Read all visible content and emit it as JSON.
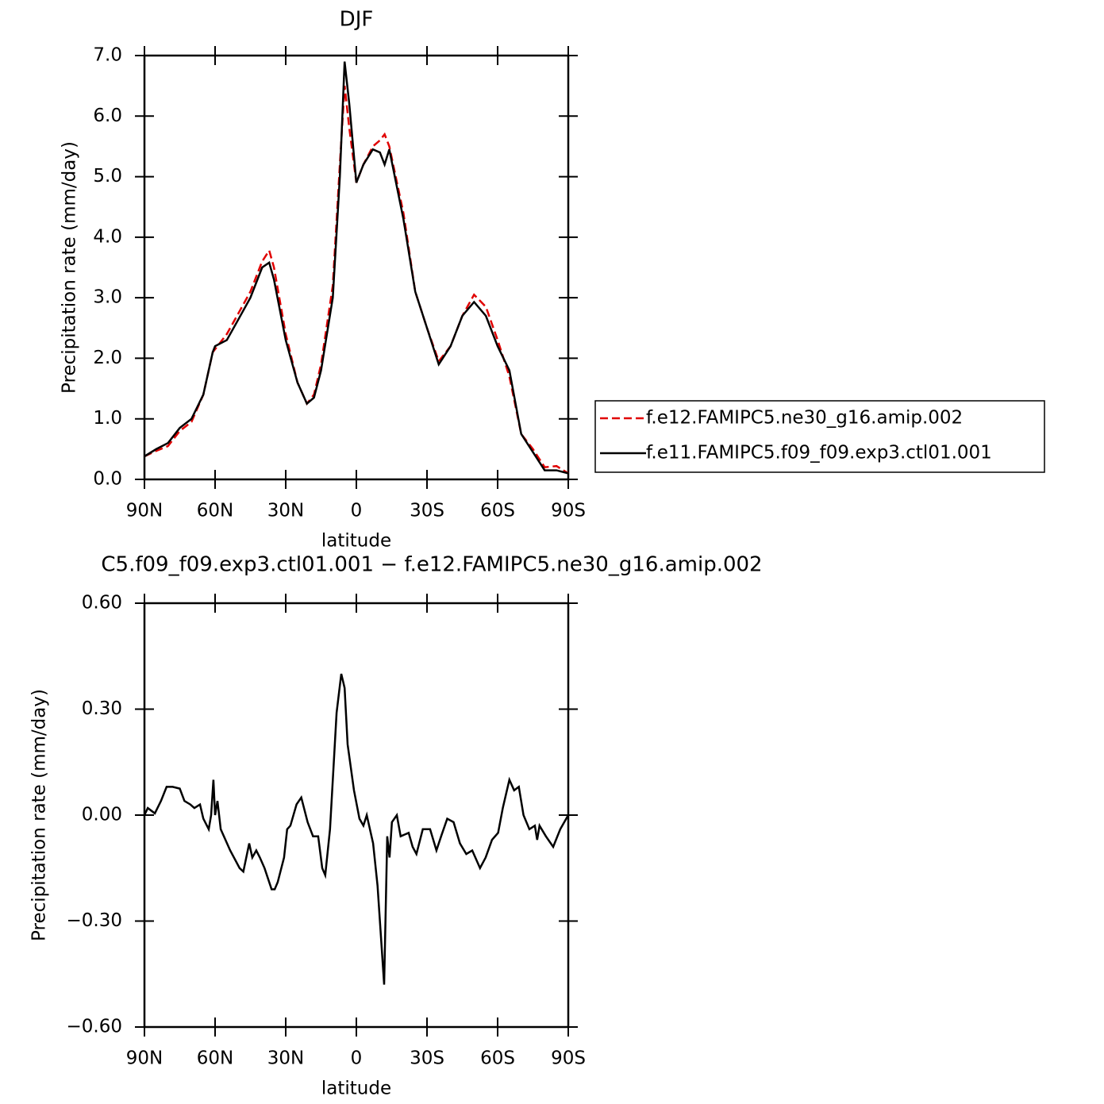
{
  "chart_data": [
    {
      "type": "line",
      "title": "DJF",
      "x_label": "latitude",
      "y_label": "Precipitation rate (mm/day)",
      "xlim": [
        90,
        -90
      ],
      "xticks": [
        {
          "value": 90,
          "label": "90N"
        },
        {
          "value": 60,
          "label": "60N"
        },
        {
          "value": 30,
          "label": "30N"
        },
        0,
        {
          "value": -30,
          "label": "30S"
        },
        {
          "value": -60,
          "label": "60S"
        },
        {
          "value": -90,
          "label": "90S"
        }
      ],
      "ylim": [
        0,
        7
      ],
      "yticks": [
        {
          "value": 0,
          "label": "0.0"
        },
        {
          "value": 1,
          "label": "1.0"
        },
        {
          "value": 2,
          "label": "2.0"
        },
        {
          "value": 3,
          "label": "3.0"
        },
        {
          "value": 4,
          "label": "4.0"
        },
        {
          "value": 5,
          "label": "5.0"
        },
        {
          "value": 6,
          "label": "6.0"
        },
        {
          "value": 7,
          "label": "7.0"
        }
      ],
      "legend": "right",
      "x": [
        90,
        85,
        80,
        75,
        70,
        65,
        61,
        60,
        55,
        50,
        45,
        40,
        37,
        35,
        30,
        25,
        21,
        18,
        15,
        10,
        7,
        5,
        3,
        0,
        -3,
        -7,
        -10,
        -12,
        -14,
        -20,
        -25,
        -30,
        -35,
        -40,
        -45,
        -50,
        -55,
        -60,
        -65,
        -70,
        -75,
        -80,
        -85,
        -90
      ],
      "series": [
        {
          "name": "f.e12.FAMIPC5.ne30_g16.amip.002",
          "color": "#e00000",
          "line_style": "dashed",
          "values": [
            0.38,
            0.47,
            0.55,
            0.8,
            0.95,
            1.4,
            2.1,
            2.15,
            2.4,
            2.75,
            3.1,
            3.6,
            3.78,
            3.5,
            2.4,
            1.6,
            1.25,
            1.4,
            1.9,
            3.2,
            5.2,
            6.5,
            5.8,
            4.9,
            5.2,
            5.5,
            5.6,
            5.7,
            5.5,
            4.4,
            3.1,
            2.5,
            1.95,
            2.2,
            2.7,
            3.05,
            2.85,
            2.3,
            1.7,
            0.75,
            0.5,
            0.2,
            0.22,
            0.1
          ]
        },
        {
          "name": "f.e11.FAMIPC5.f09_f09.exp3.ctl01.001",
          "color": "#000000",
          "line_style": "solid",
          "values": [
            0.38,
            0.5,
            0.6,
            0.85,
            1.0,
            1.4,
            2.1,
            2.2,
            2.3,
            2.65,
            3.0,
            3.5,
            3.58,
            3.3,
            2.3,
            1.6,
            1.25,
            1.35,
            1.8,
            3.0,
            5.0,
            6.9,
            6.2,
            4.9,
            5.2,
            5.45,
            5.4,
            5.2,
            5.45,
            4.3,
            3.1,
            2.5,
            1.9,
            2.2,
            2.7,
            2.93,
            2.7,
            2.2,
            1.8,
            0.75,
            0.45,
            0.15,
            0.15,
            0.1
          ]
        }
      ]
    },
    {
      "type": "line",
      "title": "C5.f09_f09.exp3.ctl01.001 − f.e12.FAMIPC5.ne30_g16.amip.002",
      "x_label": "latitude",
      "y_label": "Precipitation rate (mm/day)",
      "xlim": [
        90,
        -90
      ],
      "xticks": [
        {
          "value": 90,
          "label": "90N"
        },
        {
          "value": 60,
          "label": "60N"
        },
        {
          "value": 30,
          "label": "30N"
        },
        0,
        {
          "value": -30,
          "label": "30S"
        },
        {
          "value": -60,
          "label": "60S"
        },
        {
          "value": -90,
          "label": "90S"
        }
      ],
      "ylim": [
        -0.6,
        0.6
      ],
      "yticks": [
        {
          "value": -0.6,
          "label": "−0.60"
        },
        {
          "value": -0.3,
          "label": "−0.30"
        },
        {
          "value": 0,
          "label": "0.00"
        },
        {
          "value": 0.3,
          "label": "0.30"
        },
        {
          "value": 0.6,
          "label": "0.60"
        }
      ],
      "x": [
        90,
        88.6,
        85.6,
        83,
        80.6,
        78,
        75,
        73,
        70.5,
        68.8,
        66.4,
        65,
        62.7,
        61.7,
        60.7,
        60,
        59,
        57.6,
        53.6,
        49.6,
        48,
        45.5,
        44.2,
        42.5,
        41,
        39,
        36,
        34.7,
        33.4,
        30.7,
        29.4,
        28,
        25.4,
        23.4,
        20.7,
        18.4,
        16.2,
        14.5,
        13.2,
        11.2,
        8.4,
        6.4,
        5,
        3.7,
        1,
        -1.3,
        -3,
        -4.4,
        -7.1,
        -9,
        -11.8,
        -13.1,
        -14.1,
        -15.1,
        -17.2,
        -18.8,
        -22.2,
        -23.9,
        -25.5,
        -28.2,
        -31.3,
        -34,
        -36,
        -38.6,
        -41.3,
        -44,
        -46.7,
        -49.2,
        -52.5,
        -54.9,
        -57.6,
        -60.2,
        -62.2,
        -65,
        -67,
        -69,
        -71,
        -73.5,
        -75.8,
        -76.8,
        -77.8,
        -80.5,
        -83.6,
        -86.6,
        -90
      ],
      "series": [
        {
          "color": "#000000",
          "line_style": "solid",
          "values": [
            0.0,
            0.02,
            0.005,
            0.04,
            0.08,
            0.08,
            0.075,
            0.04,
            0.03,
            0.02,
            0.03,
            -0.01,
            -0.04,
            0.0,
            0.1,
            0.0,
            0.04,
            -0.04,
            -0.1,
            -0.15,
            -0.16,
            -0.08,
            -0.12,
            -0.1,
            -0.12,
            -0.15,
            -0.21,
            -0.21,
            -0.19,
            -0.12,
            -0.04,
            -0.03,
            0.03,
            0.05,
            -0.02,
            -0.06,
            -0.06,
            -0.15,
            -0.17,
            -0.04,
            0.29,
            0.4,
            0.36,
            0.2,
            0.07,
            -0.01,
            -0.03,
            0.0,
            -0.08,
            -0.2,
            -0.48,
            -0.06,
            -0.12,
            -0.02,
            0.0,
            -0.06,
            -0.05,
            -0.09,
            -0.11,
            -0.04,
            -0.04,
            -0.1,
            -0.06,
            -0.01,
            -0.02,
            -0.08,
            -0.11,
            -0.1,
            -0.15,
            -0.12,
            -0.07,
            -0.05,
            0.02,
            0.1,
            0.07,
            0.08,
            0.0,
            -0.04,
            -0.03,
            -0.07,
            -0.03,
            -0.06,
            -0.09,
            -0.04,
            0.0
          ]
        }
      ]
    }
  ]
}
